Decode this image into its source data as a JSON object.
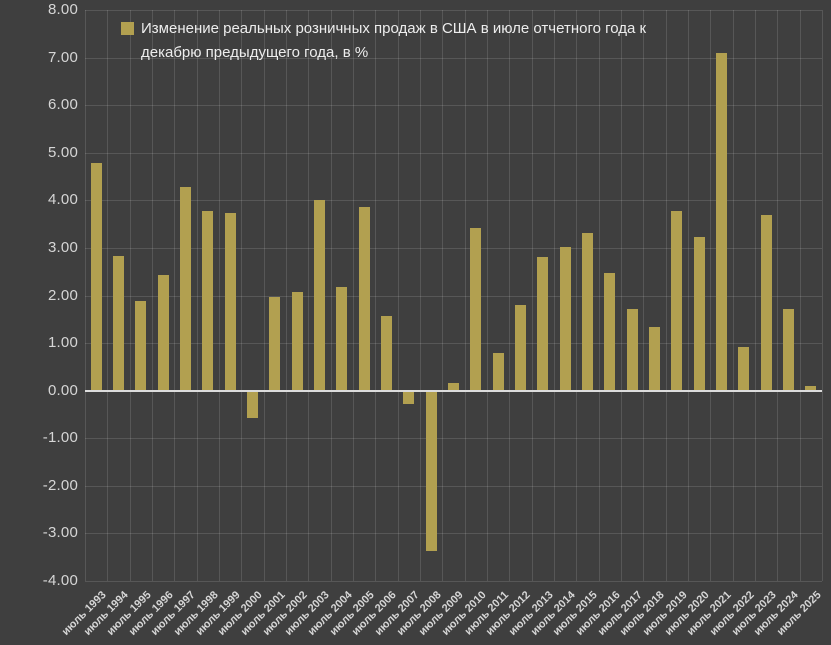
{
  "chart_data": {
    "type": "bar",
    "title": "Изменение реальных розничных продаж в США в июле отчетного года к декабрю предыдущего года, в %",
    "xlabel": "",
    "ylabel": "",
    "categories": [
      "июль 1993",
      "июль 1994",
      "июль 1995",
      "июль 1996",
      "июль 1997",
      "июль 1998",
      "июль 1999",
      "июль 2000",
      "июль 2001",
      "июль 2002",
      "июль 2003",
      "июль 2004",
      "июль 2005",
      "июль 2006",
      "июль 2007",
      "июль 2008",
      "июль 2009",
      "июль 2010",
      "июль 2011",
      "июль 2012",
      "июль 2013",
      "июль 2014",
      "июль 2015",
      "июль 2016",
      "июль 2017",
      "июль 2018",
      "июль 2019",
      "июль 2020",
      "июль 2021",
      "июль 2022",
      "июль 2023",
      "июль 2024",
      "июль 2025"
    ],
    "values": [
      4.78,
      2.84,
      1.89,
      2.44,
      4.29,
      3.77,
      3.74,
      -0.57,
      1.98,
      2.08,
      4.01,
      2.19,
      3.87,
      1.57,
      -0.29,
      -3.36,
      0.16,
      3.42,
      0.79,
      1.8,
      2.81,
      3.02,
      3.31,
      2.47,
      1.72,
      1.33,
      3.78,
      3.24,
      7.1,
      0.92,
      3.69,
      1.72,
      0.09
    ],
    "ylim": [
      -4,
      8
    ],
    "ytick_step": 1,
    "ytick_labels": [
      "8.00",
      "7.00",
      "6.00",
      "5.00",
      "4.00",
      "3.00",
      "2.00",
      "1.00",
      "0.00",
      "-1.00",
      "-2.00",
      "-3.00",
      "-4.00"
    ],
    "grid": true,
    "legend_position": "top-left-inside",
    "colors": {
      "background": "#3f3f3f",
      "bar": "#b2a050",
      "gridline": "rgba(255,255,255,0.13)",
      "zero_line": "#dcdcdc",
      "axis_text": "#d6d6d6",
      "legend_text": "#ededed"
    }
  }
}
